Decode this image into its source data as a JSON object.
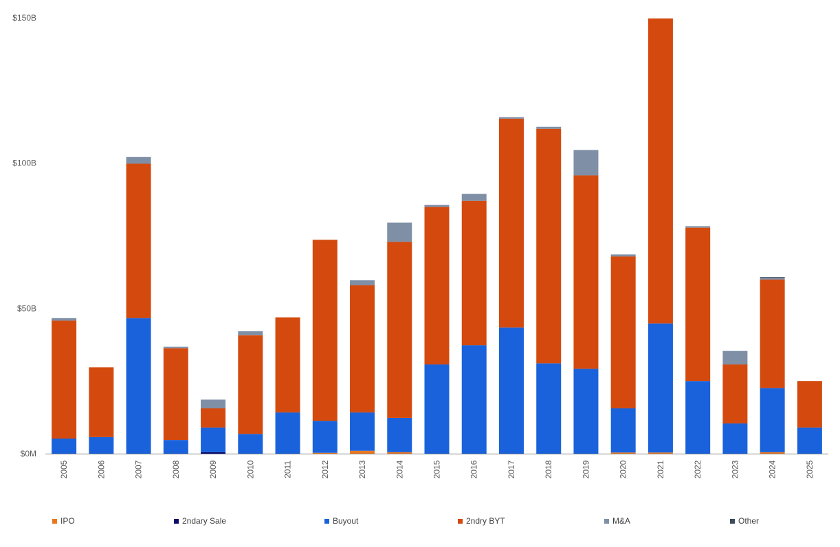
{
  "chart_data": {
    "type": "bar",
    "stacked": true,
    "title": "",
    "xlabel": "",
    "ylabel": "",
    "ylim": [
      0,
      150
    ],
    "y_unit": "billions USD",
    "y_ticks": [
      {
        "value": 0,
        "label": "$0M"
      },
      {
        "value": 50,
        "label": "$50B"
      },
      {
        "value": 100,
        "label": "$100B"
      },
      {
        "value": 150,
        "label": "$150B"
      }
    ],
    "grid": false,
    "legend_position": "bottom",
    "categories": [
      "2005",
      "2006",
      "2007",
      "2008",
      "2009",
      "2010",
      "2011",
      "2012",
      "2013",
      "2014",
      "2015",
      "2016",
      "2017",
      "2018",
      "2019",
      "2020",
      "2021",
      "2022",
      "2023",
      "2024",
      "2025"
    ],
    "series": [
      {
        "name": "IPO",
        "color": "#E87722",
        "values": [
          0,
          0,
          0,
          0,
          0,
          0,
          0,
          0.3,
          1.0,
          0.5,
          0,
          0,
          0,
          0,
          0,
          0.4,
          0.4,
          0,
          0,
          0.5,
          0
        ]
      },
      {
        "name": "2ndary Sale",
        "color": "#0B0B6E",
        "values": [
          0,
          0,
          0,
          0,
          0.5,
          0,
          0,
          0,
          0,
          0,
          0,
          0,
          0,
          0,
          0,
          0,
          0,
          0,
          0,
          0,
          0
        ]
      },
      {
        "name": "Buyout",
        "color": "#1A62DB",
        "values": [
          5.2,
          5.7,
          46.7,
          4.7,
          8.5,
          6.8,
          14.2,
          11.0,
          13.2,
          11.8,
          30.7,
          37.3,
          43.4,
          31.1,
          29.2,
          15.2,
          44.4,
          25.0,
          10.4,
          22.1,
          9.0
        ]
      },
      {
        "name": "2ndry BYT",
        "color": "#D44A0E",
        "values": [
          40.6,
          24.0,
          53.1,
          31.6,
          6.6,
          34.0,
          32.7,
          62.3,
          43.8,
          60.6,
          54.2,
          49.7,
          71.9,
          80.7,
          66.6,
          52.3,
          105.0,
          52.8,
          20.3,
          37.3,
          16.0
        ]
      },
      {
        "name": "M&A",
        "color": "#7F8FA6",
        "values": [
          0.9,
          0,
          2.3,
          0.5,
          3.0,
          1.4,
          0,
          0,
          1.7,
          6.6,
          0.7,
          2.4,
          0.5,
          0.7,
          8.7,
          0.7,
          0,
          0.5,
          4.7,
          0.5,
          0
        ]
      },
      {
        "name": "Other",
        "color": "#3B4A5C",
        "values": [
          0,
          0,
          0,
          0,
          0,
          0,
          0,
          0,
          0,
          0,
          0,
          0,
          0,
          0,
          0,
          0,
          0,
          0,
          0,
          0.3,
          0
        ]
      }
    ]
  }
}
